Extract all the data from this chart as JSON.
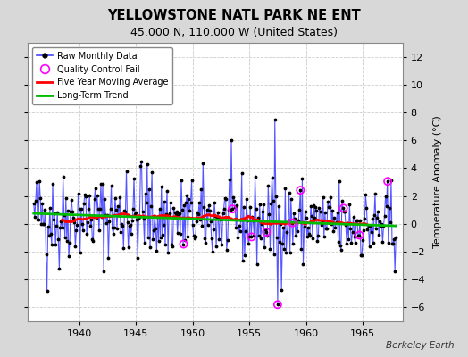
{
  "title": "YELLOWSTONE NATL PARK NE ENT",
  "subtitle": "45.000 N, 110.000 W (United States)",
  "ylabel": "Temperature Anomaly (°C)",
  "credit": "Berkeley Earth",
  "xlim": [
    1935.5,
    1968.5
  ],
  "ylim": [
    -7,
    13
  ],
  "yticks": [
    -6,
    -4,
    -2,
    0,
    2,
    4,
    6,
    8,
    10,
    12
  ],
  "xticks": [
    1940,
    1945,
    1950,
    1955,
    1960,
    1965
  ],
  "bg_color": "#d8d8d8",
  "plot_bg_color": "#ffffff",
  "grid_color": "#cccccc",
  "raw_line_color": "#4444ff",
  "raw_dot_color": "#000000",
  "qc_fail_color": "#ff00ff",
  "moving_avg_color": "#ff0000",
  "trend_color": "#00bb00",
  "start_year": 1936.0,
  "end_year": 1968.0,
  "seed": 42
}
